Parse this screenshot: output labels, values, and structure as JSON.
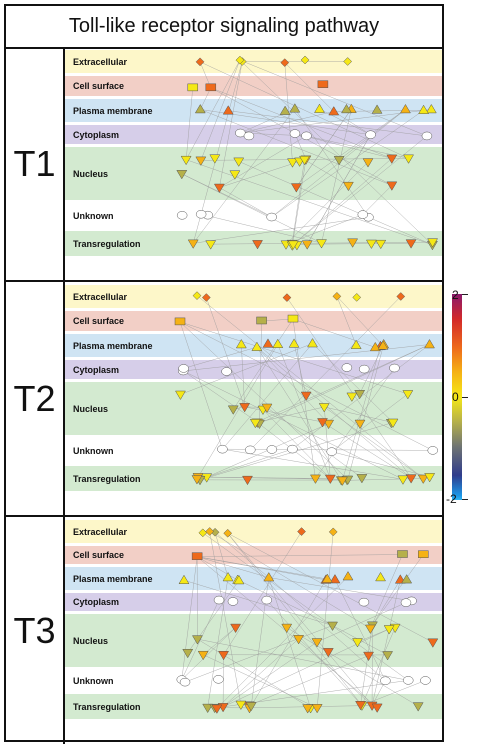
{
  "title": "Toll-like receptor signaling pathway",
  "lanes": [
    {
      "name": "Extracellular",
      "color": "#fdf7c9"
    },
    {
      "name": "Cell surface",
      "color": "#f2cfc6"
    },
    {
      "name": "Plasma membrane",
      "color": "#cfe4f3"
    },
    {
      "name": "Cytoplasm",
      "color": "#d6cee9"
    },
    {
      "name": "Nucleus",
      "color": "#d3ead0"
    },
    {
      "name": "Unknown",
      "color": "#ffffff"
    },
    {
      "name": "Transregulation",
      "color": "#d3ead0"
    }
  ],
  "panels": [
    {
      "label": "T1"
    },
    {
      "label": "T2"
    },
    {
      "label": "T3"
    }
  ],
  "colorscale": {
    "ticks": [
      "2",
      "0",
      "-2"
    ],
    "colors": [
      "#8a1a6c",
      "#d2282a",
      "#ee6a1c",
      "#f5b215",
      "#f5e816",
      "#b5b04a",
      "#6f7472",
      "#2f3c8c",
      "#1c98e8"
    ]
  }
}
